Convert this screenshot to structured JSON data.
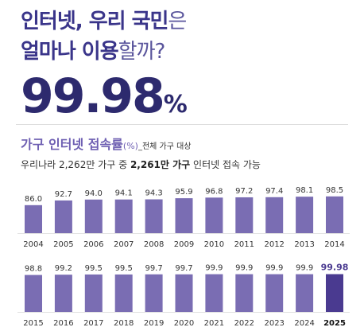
{
  "header": {
    "title_line1": [
      "인터넷, 우리 국민",
      "은"
    ],
    "title_line2": [
      "얼마나 이용",
      "할까?"
    ],
    "headline": [
      "99.98",
      "%"
    ],
    "subtitle": [
      "가구 인터넷 접속률",
      "(%)",
      "_전체 가구 대상"
    ],
    "description": [
      "우리나라 2,262만 가구 중",
      "2,261만 가구",
      "인터넷 접속 가능"
    ]
  },
  "chart_data": {
    "type": "bar",
    "categories": [
      "2004",
      "2005",
      "2006",
      "2007",
      "2008",
      "2009",
      "2010",
      "2011",
      "2012",
      "2013",
      "2014",
      "2015",
      "2016",
      "2017",
      "2018",
      "2019",
      "2020",
      "2021",
      "2022",
      "2023",
      "2024",
      "2025"
    ],
    "values": [
      86.0,
      92.7,
      94.0,
      94.1,
      94.3,
      95.9,
      96.8,
      97.2,
      97.4,
      98.1,
      98.5,
      98.8,
      99.2,
      99.5,
      99.5,
      99.7,
      99.7,
      99.9,
      99.9,
      99.9,
      99.9,
      99.98
    ],
    "value_labels": [
      "86.0",
      "92.7",
      "94.0",
      "94.1",
      "94.3",
      "95.9",
      "96.8",
      "97.2",
      "97.4",
      "98.1",
      "98.5",
      "98.8",
      "99.2",
      "99.5",
      "99.5",
      "99.7",
      "99.7",
      "99.9",
      "99.9",
      "99.9",
      "99.9",
      "99.98"
    ],
    "color": "#7a6db3",
    "highlight_color": "#4a3a90",
    "ylim": [
      46,
      100
    ]
  }
}
